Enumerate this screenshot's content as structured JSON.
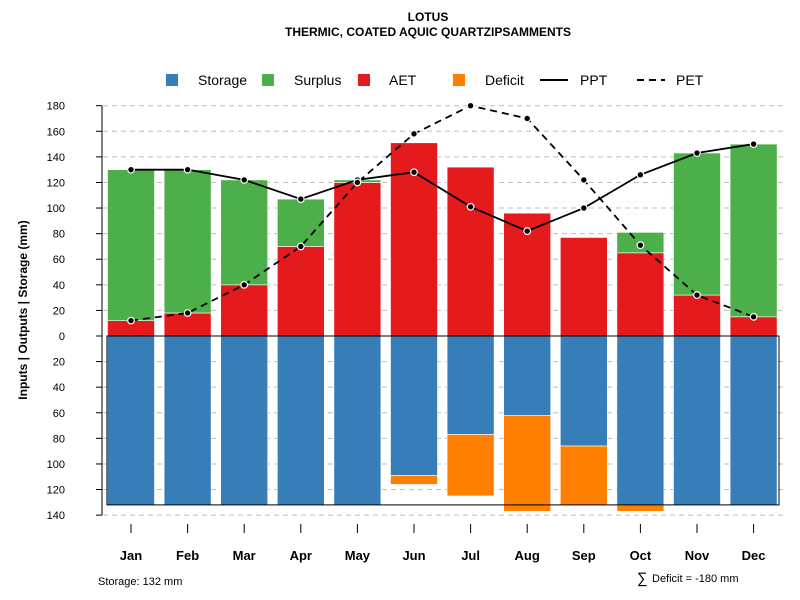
{
  "chart_data": {
    "type": "bar",
    "title": "LOTUS",
    "subtitle": "THERMIC, COATED AQUIC QUARTZIPSAMMENTS",
    "ylabel": "Inputs | Outputs | Storage    (mm)",
    "ylim": [
      -140,
      180
    ],
    "ytick_values": [
      180,
      160,
      140,
      120,
      100,
      80,
      60,
      40,
      20,
      0,
      -20,
      -40,
      -60,
      -80,
      -100,
      -120,
      -140
    ],
    "ytick_labels": [
      "180",
      "160",
      "140",
      "120",
      "100",
      "80",
      "60",
      "40",
      "20",
      "0",
      "20",
      "40",
      "60",
      "80",
      "100",
      "120",
      "140"
    ],
    "categories": [
      "Jan",
      "Feb",
      "Mar",
      "Apr",
      "May",
      "Jun",
      "Jul",
      "Aug",
      "Sep",
      "Oct",
      "Nov",
      "Dec"
    ],
    "legend": [
      "Storage",
      "Surplus",
      "AET",
      "Deficit",
      "PPT",
      "PET"
    ],
    "colors": {
      "storage": "#377EB8",
      "surplus": "#4DAF4A",
      "aet": "#E41A1C",
      "deficit": "#FF7F00",
      "line": "#000000"
    },
    "series": [
      {
        "name": "AET",
        "values": [
          12,
          18,
          40,
          70,
          120,
          151,
          132,
          96,
          77,
          65,
          32,
          15
        ]
      },
      {
        "name": "Surplus",
        "values": [
          118,
          112,
          82,
          37,
          2,
          0,
          0,
          0,
          0,
          16,
          111,
          135
        ]
      },
      {
        "name": "Storage",
        "values": [
          132,
          132,
          132,
          132,
          132,
          109,
          77,
          62,
          86,
          132,
          132,
          132
        ]
      },
      {
        "name": "Deficit",
        "values": [
          0,
          0,
          0,
          0,
          0,
          7,
          48,
          75,
          46,
          5,
          0,
          0
        ]
      },
      {
        "name": "PPT",
        "values": [
          130,
          130,
          122,
          107,
          122,
          128,
          101,
          82,
          100,
          126,
          143,
          150
        ]
      },
      {
        "name": "PET",
        "values": [
          12,
          18,
          40,
          70,
          120,
          158,
          180,
          170,
          122,
          71,
          32,
          15
        ]
      }
    ],
    "storage_capacity": 132,
    "storage_note": "Storage: 132 mm",
    "deficit_symbol": "∑",
    "deficit_note": "Deficit = -180 mm"
  }
}
